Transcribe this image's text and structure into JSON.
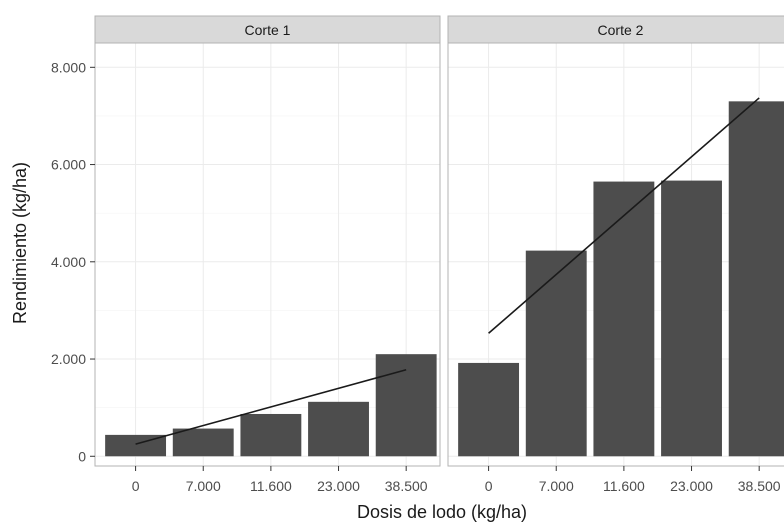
{
  "chart_data": {
    "type": "bar",
    "xlabel": "Dosis de lodo (kg/ha)",
    "ylabel": "Rendimiento (kg/ha)",
    "ylim": [
      -200,
      8500
    ],
    "yticks": [
      0,
      2000,
      4000,
      6000,
      8000
    ],
    "ytick_labels": [
      "0",
      "2.000",
      "4.000",
      "6.000",
      "8.000"
    ],
    "categories": [
      "0",
      "7.000",
      "11.600",
      "23.000",
      "38.500"
    ],
    "grid": true,
    "colors": {
      "bar": "#4d4d4d",
      "line": "#1a1a1a",
      "strip": "#d9d9d9",
      "panel_border": "#b3b3b3",
      "grid": "#ebebeb"
    },
    "panels": [
      {
        "title": "Corte 1",
        "values": [
          440,
          570,
          870,
          1120,
          2100
        ],
        "trendline": {
          "start": 250,
          "end": 1780
        }
      },
      {
        "title": "Corte 2",
        "values": [
          1920,
          4230,
          5650,
          5670,
          7300
        ],
        "trendline": {
          "start": 2530,
          "end": 7370
        }
      }
    ]
  }
}
